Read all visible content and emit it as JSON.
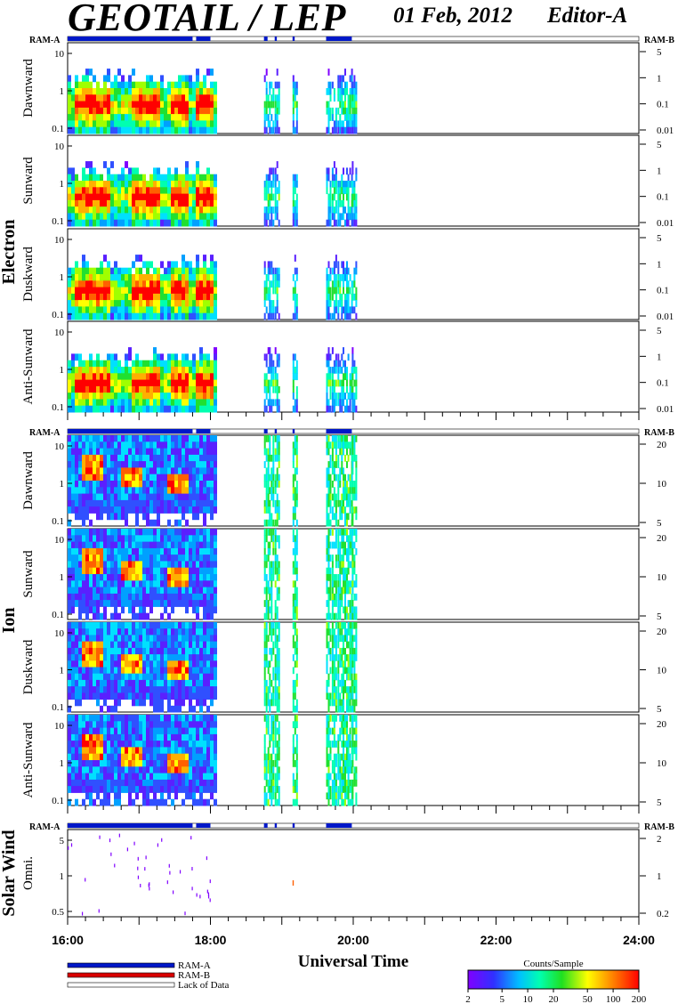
{
  "header": {
    "title": "GEOTAIL / LEP",
    "date": "01 Feb, 2012",
    "editor": "Editor-A"
  },
  "colors": {
    "ram_a": "#0018c8",
    "ram_b": "#d80000",
    "lack": "#ffffff"
  },
  "chart_data": {
    "type": "heatmap",
    "xlabel": "Universal Time",
    "x_ticks": [
      "16:00",
      "18:00",
      "20:00",
      "22:00",
      "24:00"
    ],
    "x_range_hours": [
      16,
      24
    ],
    "data_coverage": {
      "continuous": [
        16.0,
        18.05
      ],
      "bursts": [
        18.75,
        18.82,
        18.9,
        19.15,
        19.62,
        19.7,
        19.78,
        19.85,
        19.92,
        19.98
      ]
    },
    "ram_status": {
      "ram_a_intervals": [
        [
          16.0,
          17.75
        ],
        [
          17.8,
          18.0
        ],
        [
          18.75,
          18.8
        ],
        [
          18.9,
          18.93
        ],
        [
          19.15,
          19.18
        ],
        [
          19.62,
          19.98
        ]
      ]
    },
    "groups": [
      {
        "name": "Electron",
        "left_ticks": [
          "10",
          "1",
          "0.1"
        ],
        "right_ticks": [
          "5",
          "1",
          "0.1",
          "0.01"
        ],
        "ram_left": "RAM-A",
        "ram_right": "RAM-B",
        "panels": [
          {
            "label": "Dawnward"
          },
          {
            "label": "Sunward"
          },
          {
            "label": "Duskward"
          },
          {
            "label": "Anti-Sunward"
          }
        ]
      },
      {
        "name": "Ion",
        "left_ticks": [
          "10",
          "1",
          "0.1"
        ],
        "right_ticks": [
          "20",
          "10",
          "5"
        ],
        "ram_left": "RAM-A",
        "ram_right": "RAM-B",
        "panels": [
          {
            "label": "Dawnward"
          },
          {
            "label": "Sunward"
          },
          {
            "label": "Duskward"
          },
          {
            "label": "Anti-Sunward"
          }
        ]
      },
      {
        "name": "Solar Wind",
        "left_ticks": [
          "5",
          "1",
          "0.5"
        ],
        "right_ticks": [
          "2",
          "1",
          "0.2"
        ],
        "ram_left": "RAM-A",
        "ram_right": "RAM-B",
        "panels": [
          {
            "label": "Omni."
          }
        ]
      }
    ],
    "colorbar": {
      "title": "Counts/Sample",
      "ticks": [
        "2",
        "5",
        "10",
        "20",
        "50",
        "100",
        "200"
      ],
      "scale": "log",
      "range": [
        2,
        200
      ]
    },
    "legend": [
      {
        "label": "RAM-A",
        "color": "#0018c8"
      },
      {
        "label": "RAM-B",
        "color": "#d80000"
      },
      {
        "label": "Lack of Data",
        "color": "#ffffff"
      }
    ]
  }
}
